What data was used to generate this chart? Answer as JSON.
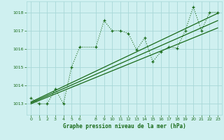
{
  "title": "Graphe pression niveau de la mer (hPa)",
  "bg_color": "#cff0f0",
  "grid_color": "#a8d8d8",
  "line_color": "#1a6b1a",
  "xlim": [
    -0.5,
    23.5
  ],
  "ylim": [
    1012.4,
    1018.6
  ],
  "yticks": [
    1013,
    1014,
    1015,
    1016,
    1017,
    1018
  ],
  "xticks": [
    0,
    1,
    2,
    3,
    4,
    5,
    6,
    8,
    9,
    10,
    11,
    12,
    13,
    14,
    15,
    16,
    17,
    18,
    19,
    20,
    21,
    22,
    23
  ],
  "series1_x": [
    0,
    1,
    2,
    3,
    4,
    5,
    6,
    8,
    9,
    10,
    11,
    12,
    13,
    14,
    15,
    16,
    17,
    18,
    19,
    20,
    21,
    22,
    23
  ],
  "series1_y": [
    1013.3,
    1013.0,
    1013.0,
    1013.8,
    1013.0,
    1015.0,
    1016.1,
    1016.1,
    1017.55,
    1017.0,
    1017.0,
    1016.85,
    1015.95,
    1016.6,
    1015.3,
    1015.85,
    1016.1,
    1016.05,
    1017.0,
    1018.3,
    1017.0,
    1018.0,
    1018.0
  ],
  "series2_x": [
    0,
    23
  ],
  "series2_y": [
    1013.1,
    1017.95
  ],
  "series3_x": [
    0,
    23
  ],
  "series3_y": [
    1013.0,
    1017.15
  ],
  "series4_x": [
    0,
    23
  ],
  "series4_y": [
    1013.05,
    1017.55
  ]
}
